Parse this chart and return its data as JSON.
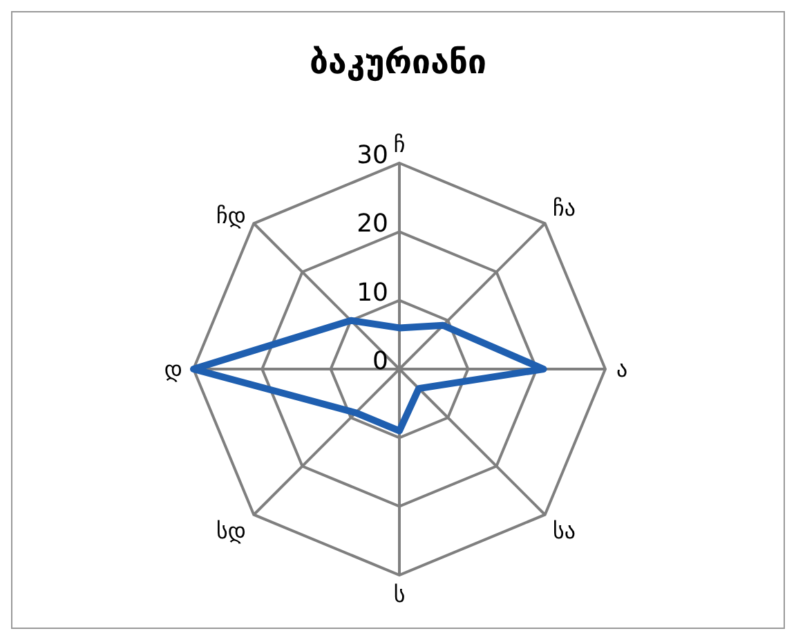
{
  "chart_data": {
    "type": "radar",
    "title": "ბაკურიანი",
    "categories": [
      "ჩ",
      "ჩა",
      "ა",
      "სა",
      "ს",
      "სდ",
      "დ",
      "ჩდ"
    ],
    "series": [
      {
        "color": "#1f5fb0",
        "values": [
          6,
          9,
          21,
          4,
          9,
          9,
          30,
          10
        ]
      }
    ],
    "ylim": [
      0,
      30
    ],
    "yticks": [
      0,
      10,
      20,
      30
    ],
    "grid": true,
    "marker": "none"
  }
}
